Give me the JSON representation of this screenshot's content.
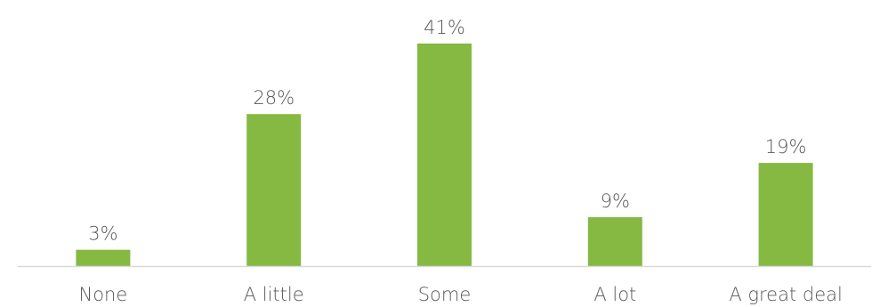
{
  "chart_data": {
    "type": "bar",
    "title": "",
    "xlabel": "",
    "ylabel": "",
    "categories": [
      "None",
      "A little",
      "Some",
      "A lot",
      "A great deal"
    ],
    "values": [
      3,
      28,
      41,
      9,
      19
    ],
    "data_labels": [
      "3%",
      "28%",
      "41%",
      "9%",
      "19%"
    ],
    "unit": "%",
    "ylim": [
      0,
      45
    ],
    "grid": false,
    "legend": "none",
    "colors": {
      "bar": "#85b942",
      "axis": "#d9d9d9",
      "text": "#595959"
    }
  }
}
